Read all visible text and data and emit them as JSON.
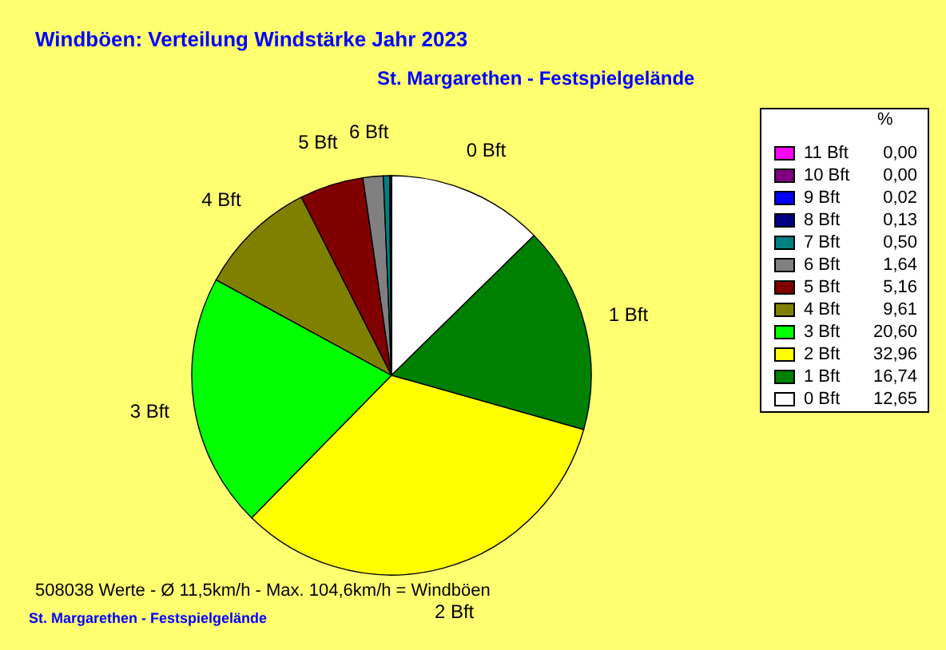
{
  "chart_data": {
    "type": "pie",
    "title": "Windböen: Verteilung Windstärke  Jahr 2023",
    "subtitle": "St. Margarethen - Festspielgelände",
    "categories": [
      "0 Bft",
      "1 Bft",
      "2 Bft",
      "3 Bft",
      "4 Bft",
      "5 Bft",
      "6 Bft",
      "7 Bft",
      "8 Bft",
      "9 Bft",
      "10 Bft",
      "11 Bft"
    ],
    "values": [
      12.65,
      16.74,
      32.96,
      20.6,
      9.61,
      5.16,
      1.64,
      0.5,
      0.13,
      0.02,
      0.0,
      0.0
    ],
    "value_labels": [
      "12,65",
      "16,74",
      "32,96",
      "20,60",
      "9,61",
      "5,16",
      "1,64",
      "0,50",
      "0,13",
      "0,02",
      "0,00",
      "0,00"
    ],
    "colors": [
      "#ffffff",
      "#008000",
      "#ffff00",
      "#00ff00",
      "#808000",
      "#800000",
      "#808080",
      "#008080",
      "#000080",
      "#0000ff",
      "#800080",
      "#ff00ff"
    ],
    "legend": "right",
    "legend_title": "%",
    "annotations": [
      "508038 Werte   -   Ø 11,5km/h  -  Max. 104,6km/h = Windböen",
      "St. Margarethen - Festspielgelände"
    ]
  }
}
